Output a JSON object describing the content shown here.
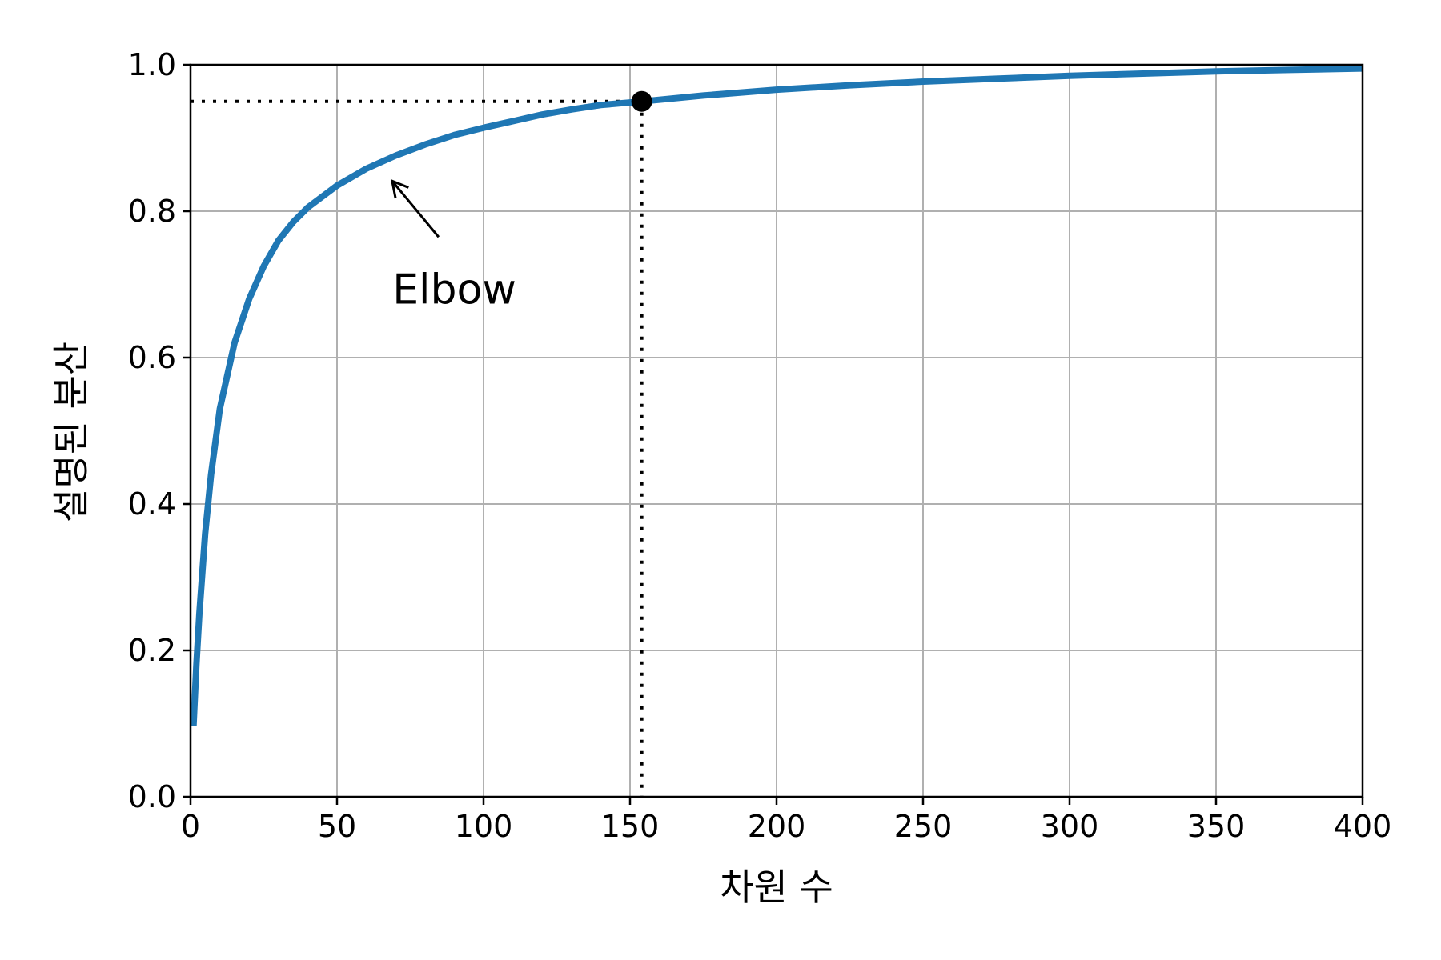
{
  "chart_data": {
    "type": "line",
    "title": "",
    "xlabel": "차원 수",
    "ylabel": "설명된 분산",
    "xlim": [
      0,
      400
    ],
    "ylim": [
      0,
      1
    ],
    "xticks": [
      0,
      50,
      100,
      150,
      200,
      250,
      300,
      350,
      400
    ],
    "xtick_labels": [
      "0",
      "50",
      "100",
      "150",
      "200",
      "250",
      "300",
      "350",
      "400"
    ],
    "yticks": [
      0,
      0.2,
      0.4,
      0.6,
      0.8,
      1.0
    ],
    "ytick_labels": [
      "0.0",
      "0.2",
      "0.4",
      "0.6",
      "0.8",
      "1.0"
    ],
    "grid": true,
    "colors": {
      "line": "#1f77b4",
      "grid": "#b0b0b0",
      "axes": "#000000",
      "marker": "#000000"
    },
    "series": [
      {
        "x": [
          1,
          2,
          3,
          5,
          7,
          10,
          15,
          20,
          25,
          30,
          35,
          40,
          45,
          50,
          60,
          70,
          80,
          90,
          100,
          110,
          120,
          130,
          140,
          154,
          175,
          200,
          225,
          250,
          275,
          300,
          325,
          350,
          375,
          400
        ],
        "values": [
          0.097,
          0.18,
          0.25,
          0.36,
          0.44,
          0.53,
          0.62,
          0.68,
          0.725,
          0.76,
          0.785,
          0.805,
          0.82,
          0.835,
          0.858,
          0.876,
          0.891,
          0.904,
          0.914,
          0.923,
          0.932,
          0.939,
          0.945,
          0.95,
          0.958,
          0.966,
          0.972,
          0.977,
          0.981,
          0.985,
          0.988,
          0.991,
          0.993,
          0.995
        ]
      }
    ],
    "reference": {
      "x": 154,
      "y": 0.95
    },
    "annotation": {
      "text": "Elbow",
      "point": [
        65,
        0.85
      ],
      "text_at": [
        70,
        0.7
      ]
    }
  }
}
